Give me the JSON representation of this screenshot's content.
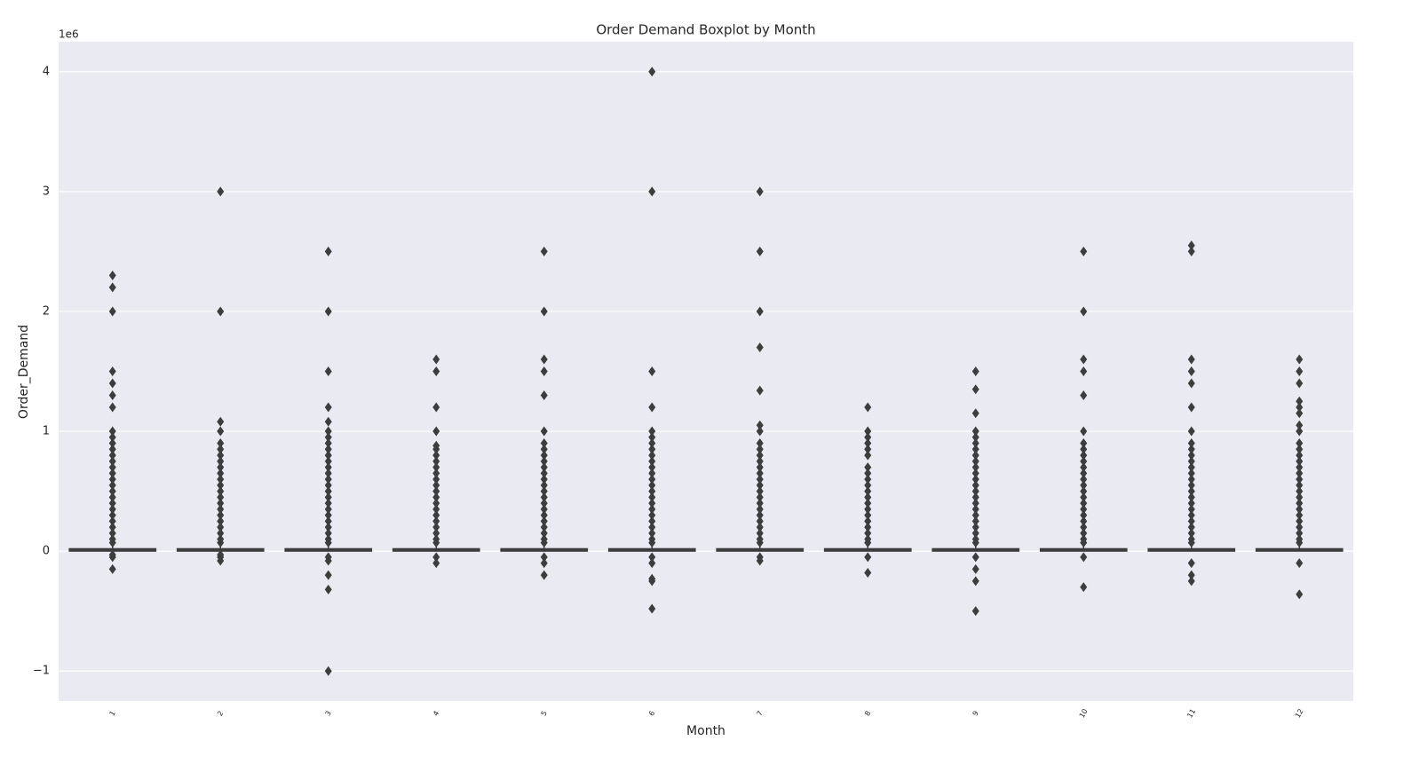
{
  "chart_data": {
    "type": "box",
    "title": "Order Demand Boxplot by Month",
    "xlabel": "Month",
    "ylabel": "Order_Demand",
    "offset_text": "1e6",
    "categories": [
      "1",
      "2",
      "3",
      "4",
      "5",
      "6",
      "7",
      "8",
      "9",
      "10",
      "11",
      "12"
    ],
    "ylim": [
      -1.25,
      4.25
    ],
    "yticks": [
      {
        "value": -1,
        "label": "−1"
      },
      0,
      1,
      2,
      3,
      4
    ],
    "grid": true,
    "boxes": [
      {
        "whislo": 0,
        "q1": 0.0005,
        "median": 0.003,
        "q3": 0.02,
        "whishi": 0.05,
        "fliers": [
          2.3,
          2.2,
          2.0,
          1.5,
          1.4,
          1.3,
          1.2,
          1.0,
          0.95,
          0.9,
          0.85,
          0.8,
          0.75,
          0.7,
          0.65,
          0.6,
          0.55,
          0.5,
          0.45,
          0.4,
          0.35,
          0.3,
          0.25,
          0.2,
          0.15,
          0.1,
          0.07,
          -0.03,
          -0.05,
          -0.15
        ]
      },
      {
        "whislo": 0,
        "q1": 0.0005,
        "median": 0.003,
        "q3": 0.02,
        "whishi": 0.05,
        "fliers": [
          3.0,
          2.0,
          1.08,
          1.0,
          0.9,
          0.85,
          0.8,
          0.75,
          0.7,
          0.65,
          0.6,
          0.55,
          0.5,
          0.45,
          0.4,
          0.35,
          0.3,
          0.25,
          0.2,
          0.15,
          0.1,
          0.07,
          -0.03,
          -0.05,
          -0.08
        ]
      },
      {
        "whislo": 0,
        "q1": 0.0005,
        "median": 0.003,
        "q3": 0.02,
        "whishi": 0.05,
        "fliers": [
          2.5,
          2.0,
          1.5,
          1.2,
          1.08,
          1.0,
          0.95,
          0.9,
          0.85,
          0.8,
          0.75,
          0.7,
          0.65,
          0.6,
          0.55,
          0.5,
          0.45,
          0.4,
          0.35,
          0.3,
          0.25,
          0.2,
          0.15,
          0.1,
          0.07,
          -0.05,
          -0.08,
          -0.2,
          -0.32,
          -1.0
        ]
      },
      {
        "whislo": 0,
        "q1": 0.0005,
        "median": 0.003,
        "q3": 0.02,
        "whishi": 0.05,
        "fliers": [
          1.6,
          1.5,
          1.2,
          1.0,
          0.88,
          0.85,
          0.8,
          0.75,
          0.7,
          0.65,
          0.6,
          0.55,
          0.5,
          0.45,
          0.4,
          0.35,
          0.3,
          0.25,
          0.2,
          0.15,
          0.1,
          0.07,
          -0.05,
          -0.1
        ]
      },
      {
        "whislo": 0,
        "q1": 0.0005,
        "median": 0.003,
        "q3": 0.02,
        "whishi": 0.05,
        "fliers": [
          2.5,
          2.0,
          1.6,
          1.5,
          1.3,
          1.0,
          0.9,
          0.85,
          0.8,
          0.75,
          0.7,
          0.65,
          0.6,
          0.55,
          0.5,
          0.45,
          0.4,
          0.35,
          0.3,
          0.25,
          0.2,
          0.15,
          0.1,
          0.07,
          -0.05,
          -0.1,
          -0.2
        ]
      },
      {
        "whislo": 0,
        "q1": 0.0005,
        "median": 0.003,
        "q3": 0.02,
        "whishi": 0.05,
        "fliers": [
          4.0,
          3.0,
          1.5,
          1.2,
          1.0,
          0.95,
          0.9,
          0.85,
          0.8,
          0.75,
          0.7,
          0.65,
          0.6,
          0.55,
          0.5,
          0.45,
          0.4,
          0.35,
          0.3,
          0.25,
          0.2,
          0.15,
          0.1,
          0.07,
          -0.05,
          -0.1,
          -0.23,
          -0.25,
          -0.48
        ]
      },
      {
        "whislo": 0,
        "q1": 0.0005,
        "median": 0.003,
        "q3": 0.02,
        "whishi": 0.05,
        "fliers": [
          3.0,
          2.5,
          2.0,
          1.7,
          1.34,
          1.05,
          1.0,
          0.9,
          0.85,
          0.8,
          0.75,
          0.7,
          0.65,
          0.6,
          0.55,
          0.5,
          0.45,
          0.4,
          0.35,
          0.3,
          0.25,
          0.2,
          0.15,
          0.1,
          0.07,
          -0.05,
          -0.08
        ]
      },
      {
        "whislo": 0,
        "q1": 0.0005,
        "median": 0.003,
        "q3": 0.02,
        "whishi": 0.05,
        "fliers": [
          1.2,
          1.0,
          0.95,
          0.9,
          0.85,
          0.8,
          0.7,
          0.65,
          0.6,
          0.55,
          0.5,
          0.45,
          0.4,
          0.35,
          0.3,
          0.25,
          0.2,
          0.15,
          0.1,
          0.07,
          -0.05,
          -0.18
        ]
      },
      {
        "whislo": 0,
        "q1": 0.0005,
        "median": 0.003,
        "q3": 0.02,
        "whishi": 0.05,
        "fliers": [
          1.5,
          1.35,
          1.15,
          1.0,
          0.95,
          0.9,
          0.85,
          0.8,
          0.75,
          0.7,
          0.65,
          0.6,
          0.55,
          0.5,
          0.45,
          0.4,
          0.35,
          0.3,
          0.25,
          0.2,
          0.15,
          0.1,
          0.07,
          -0.05,
          -0.15,
          -0.25,
          -0.5
        ]
      },
      {
        "whislo": 0,
        "q1": 0.0005,
        "median": 0.003,
        "q3": 0.02,
        "whishi": 0.05,
        "fliers": [
          2.5,
          2.0,
          1.6,
          1.5,
          1.3,
          1.0,
          0.9,
          0.85,
          0.8,
          0.75,
          0.7,
          0.65,
          0.6,
          0.55,
          0.5,
          0.45,
          0.4,
          0.35,
          0.3,
          0.25,
          0.2,
          0.15,
          0.1,
          0.07,
          -0.05,
          -0.3
        ]
      },
      {
        "whislo": 0,
        "q1": 0.0005,
        "median": 0.003,
        "q3": 0.02,
        "whishi": 0.05,
        "fliers": [
          2.55,
          2.5,
          1.6,
          1.5,
          1.4,
          1.2,
          1.0,
          0.9,
          0.85,
          0.8,
          0.75,
          0.7,
          0.65,
          0.6,
          0.55,
          0.5,
          0.45,
          0.4,
          0.35,
          0.3,
          0.25,
          0.2,
          0.15,
          0.1,
          0.07,
          -0.1,
          -0.2,
          -0.25
        ]
      },
      {
        "whislo": 0,
        "q1": 0.0005,
        "median": 0.003,
        "q3": 0.02,
        "whishi": 0.05,
        "fliers": [
          1.6,
          1.5,
          1.4,
          1.25,
          1.2,
          1.15,
          1.05,
          1.0,
          0.9,
          0.85,
          0.8,
          0.75,
          0.7,
          0.65,
          0.6,
          0.55,
          0.5,
          0.45,
          0.4,
          0.35,
          0.3,
          0.25,
          0.2,
          0.15,
          0.1,
          0.07,
          -0.1,
          -0.36
        ]
      }
    ]
  }
}
